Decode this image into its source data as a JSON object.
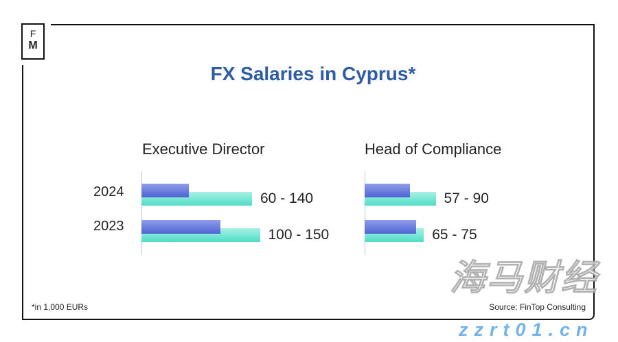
{
  "logo": {
    "top": "F",
    "bottom": "M"
  },
  "chart_data": [
    {
      "type": "bar",
      "title": "FX Salaries in Cyprus*",
      "subtitle": "Executive Director",
      "categories": [
        "2024",
        "2023"
      ],
      "series": [
        {
          "values": [
            60,
            100
          ]
        },
        {
          "values": [
            140,
            150
          ]
        }
      ],
      "data_labels": [
        "60 - 140",
        "100 - 150"
      ],
      "unit_note": "*in 1,000 EURs",
      "colors": {
        "min": "#5a6ed9",
        "max": "#5fe0cb"
      }
    },
    {
      "type": "bar",
      "subtitle": "Head of Compliance",
      "categories": [
        "2024",
        "2023"
      ],
      "series": [
        {
          "values": [
            57,
            65
          ]
        },
        {
          "values": [
            90,
            75
          ]
        }
      ],
      "data_labels": [
        "57 - 90",
        "65 - 75"
      ],
      "colors": {
        "min": "#5a6ed9",
        "max": "#5fe0cb"
      }
    }
  ],
  "title": "FX Salaries in Cyprus*",
  "footnote": "*in 1,000 EURs",
  "source": "Source: FinTop Consulting",
  "watermark": {
    "cn": "海马财经",
    "url": "zzrt01.cn"
  }
}
